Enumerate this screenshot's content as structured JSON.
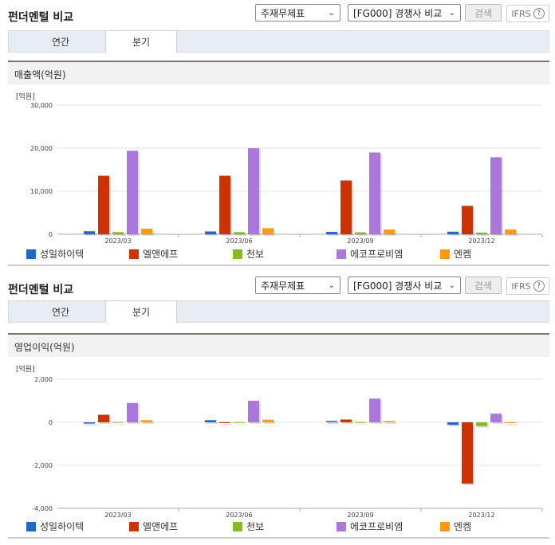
{
  "colors": [
    "#2266cc",
    "#cc3300",
    "#88bb22",
    "#aa77dd",
    "#ff9911"
  ],
  "panels": [
    {
      "title": "펀더멘털 비교",
      "statement_select": "주재무제표",
      "peer_select": "[FG000] 경쟁사 비교",
      "search_label": "검색",
      "ifrs_label": "IFRS",
      "help_label": "?",
      "tabs": [
        {
          "label": "연간"
        },
        {
          "label": "분기"
        }
      ],
      "active_tab": 1,
      "section_title": "매출액(억원)",
      "unit_label": "[억원]",
      "legend": [
        "성일하이텍",
        "엘앤에프",
        "천보",
        "에코프로비엠",
        "엔켐"
      ]
    },
    {
      "title": "펀더멘털 비교",
      "statement_select": "주재무제표",
      "peer_select": "[FG000] 경쟁사 비교",
      "search_label": "검색",
      "ifrs_label": "IFRS",
      "help_label": "?",
      "tabs": [
        {
          "label": "연간"
        },
        {
          "label": "분기"
        }
      ],
      "active_tab": 1,
      "section_title": "영업이익(억원)",
      "unit_label": "[억원]",
      "legend": [
        "성일하이텍",
        "엘앤에프",
        "천보",
        "에코프로비엠",
        "엔켐"
      ]
    }
  ],
  "chart_data": [
    {
      "type": "bar",
      "title": "매출액(억원)",
      "ylabel": "[억원]",
      "categories": [
        "2023/03",
        "2023/06",
        "2023/09",
        "2023/12"
      ],
      "ylim": [
        0,
        30000
      ],
      "yticks": [
        0,
        10000,
        20000,
        30000
      ],
      "ytick_labels": [
        "0",
        "10,000",
        "20,000",
        "30,000"
      ],
      "grid": true,
      "legend_position": "bottom",
      "series": [
        {
          "name": "성일하이텍",
          "values": [
            700,
            650,
            550,
            600
          ]
        },
        {
          "name": "엘앤에프",
          "values": [
            13600,
            13600,
            12500,
            6600
          ]
        },
        {
          "name": "천보",
          "values": [
            500,
            500,
            450,
            400
          ]
        },
        {
          "name": "에코프로비엠",
          "values": [
            19400,
            20000,
            19000,
            17900
          ]
        },
        {
          "name": "엔켐",
          "values": [
            1300,
            1400,
            1100,
            1100
          ]
        }
      ]
    },
    {
      "type": "bar",
      "title": "영업이익(억원)",
      "ylabel": "[억원]",
      "categories": [
        "2023/03",
        "2023/06",
        "2023/09",
        "2023/12"
      ],
      "ylim": [
        -4000,
        2000
      ],
      "yticks": [
        -4000,
        -2000,
        0,
        2000
      ],
      "ytick_labels": [
        "-4,000",
        "-2,000",
        "0",
        "2,000"
      ],
      "grid": true,
      "legend_position": "bottom",
      "series": [
        {
          "name": "성일하이텍",
          "values": [
            -60,
            100,
            60,
            -120
          ]
        },
        {
          "name": "엘앤에프",
          "values": [
            350,
            0,
            130,
            -2850
          ]
        },
        {
          "name": "천보",
          "values": [
            15,
            10,
            10,
            -180
          ]
        },
        {
          "name": "에코프로비엠",
          "values": [
            900,
            1000,
            1100,
            400
          ]
        },
        {
          "name": "엔켐",
          "values": [
            100,
            120,
            60,
            -20
          ]
        }
      ]
    }
  ]
}
